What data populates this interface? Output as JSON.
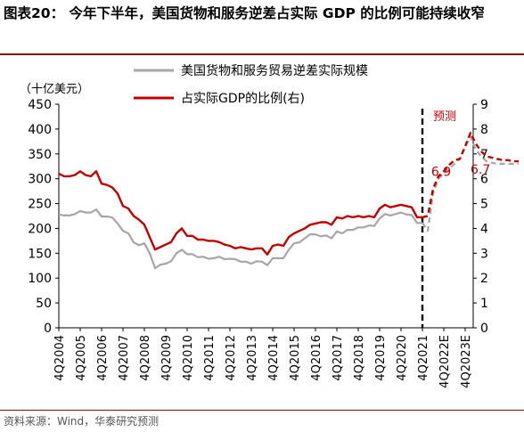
{
  "figure": {
    "title": "图表20： 今年下半年，美国货物和服务逆差占实际 GDP 的比例可能持续收窄",
    "source": "资料来源：Wind，华泰研究预测"
  },
  "chart_data": {
    "type": "line",
    "left_axis_unit": "（十亿美元）",
    "forecast_label": "预测",
    "x_tick_labels": [
      "4Q2004",
      "4Q2005",
      "4Q2006",
      "4Q2007",
      "4Q2008",
      "4Q2009",
      "4Q2010",
      "4Q2011",
      "4Q2012",
      "4Q2013",
      "4Q2014",
      "4Q2015",
      "4Q2016",
      "4Q2017",
      "4Q2018",
      "4Q2019",
      "4Q2020",
      "4Q2021",
      "4Q2022E",
      "4Q2023E"
    ],
    "ylim_left": [
      0,
      450
    ],
    "yticks_left": [
      0,
      50,
      100,
      150,
      200,
      250,
      300,
      350,
      400,
      450
    ],
    "ylim_right": [
      0,
      9
    ],
    "yticks_right": [
      0,
      1,
      2,
      3,
      4,
      5,
      6,
      7,
      8,
      9
    ],
    "x_start": "4Q2004",
    "forecast_start": "4Q2021",
    "series": [
      {
        "name": "美国货物和服务贸易逆差实际规模",
        "axis": "left",
        "color": "#a6a6a6",
        "values": [
          228,
          226,
          226,
          229,
          235,
          232,
          232,
          238,
          224,
          224,
          222,
          210,
          195,
          190,
          172,
          166,
          170,
          150,
          120,
          127,
          129,
          134,
          150,
          157,
          148,
          148,
          142,
          143,
          139,
          140,
          143,
          138,
          139,
          138,
          133,
          133,
          129,
          134,
          133,
          126,
          140,
          140,
          140,
          157,
          170,
          172,
          180,
          188,
          188,
          184,
          186,
          180,
          194,
          190,
          197,
          197,
          202,
          202,
          206,
          205,
          220,
          229,
          226,
          229,
          232,
          228,
          227,
          211,
          211,
          195,
          270,
          300,
          310,
          320,
          330,
          340,
          365,
          385,
          358,
          345,
          335,
          332,
          330,
          330,
          330,
          330,
          330
        ]
      },
      {
        "name": "占实际GDP的比例(右)",
        "axis": "right",
        "color": "#c00000",
        "values": [
          6.2,
          6.1,
          6.1,
          6.15,
          6.3,
          6.15,
          6.1,
          6.3,
          5.8,
          5.75,
          5.65,
          5.4,
          4.9,
          4.8,
          4.5,
          4.35,
          4.15,
          3.65,
          3.15,
          3.25,
          3.35,
          3.45,
          3.8,
          4.0,
          3.7,
          3.7,
          3.55,
          3.55,
          3.5,
          3.5,
          3.45,
          3.35,
          3.3,
          3.2,
          3.25,
          3.2,
          3.15,
          3.2,
          3.2,
          2.95,
          3.3,
          3.35,
          3.3,
          3.65,
          3.8,
          3.9,
          4.0,
          4.15,
          4.2,
          4.25,
          4.25,
          4.15,
          4.45,
          4.4,
          4.5,
          4.45,
          4.5,
          4.45,
          4.5,
          4.45,
          4.8,
          4.95,
          4.85,
          4.9,
          4.95,
          4.9,
          4.85,
          4.45,
          4.45,
          4.5,
          5.6,
          6.1,
          6.3,
          6.55,
          6.75,
          6.8,
          7.3,
          7.85,
          7.4,
          7.1,
          6.9,
          6.85,
          6.8,
          6.75,
          6.75,
          6.7,
          6.7
        ]
      }
    ],
    "annotations": [
      {
        "text": "6.9",
        "series": "占实际GDP的比例(右)",
        "x": "4Q2022E",
        "y": 6.9
      },
      {
        "text": "6.7",
        "series": "占实际GDP的比例(右)",
        "x": "4Q2023E",
        "y": 6.7
      }
    ],
    "grid": false,
    "legend": "top-center"
  }
}
